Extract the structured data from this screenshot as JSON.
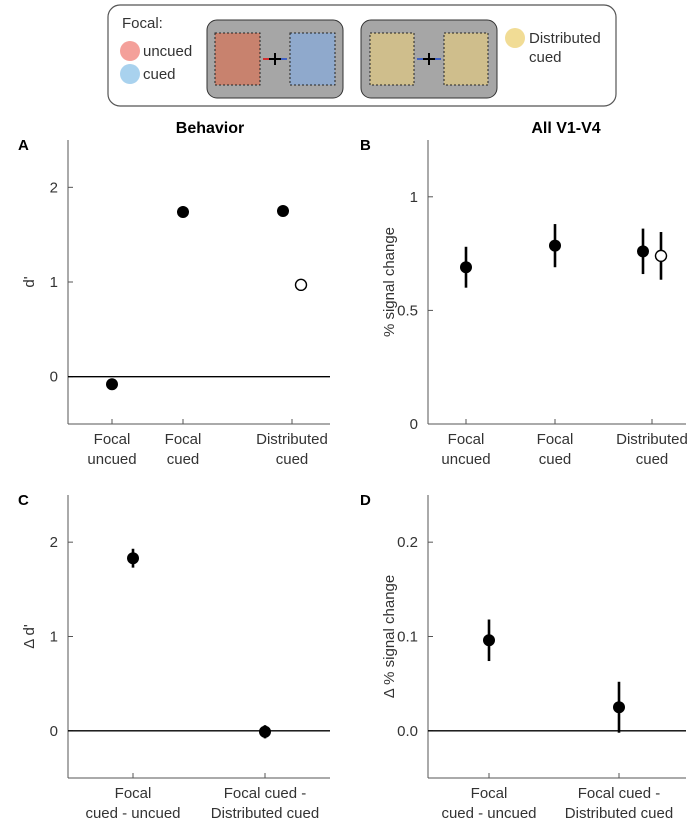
{
  "legend": {
    "heading": "Focal:",
    "items": [
      {
        "label": "uncued",
        "color": "#f4a09a"
      },
      {
        "label": "cued",
        "color": "#a9d2ee"
      },
      {
        "label_lines": [
          "Distributed",
          "cued"
        ],
        "color": "#f1dc95"
      }
    ],
    "stim_colors": {
      "uncued": "#c8826e",
      "cued": "#8fa9cc",
      "distributed": "#cfbe8c",
      "panel_bg": "#a6a6a6"
    }
  },
  "chart_data": [
    {
      "panel": "A",
      "title": "Behavior",
      "type": "scatter",
      "ylabel": "d'",
      "ylim": [
        -0.5,
        2.5
      ],
      "yticks": [
        0,
        1,
        2
      ],
      "categories": [
        [
          "Focal",
          "uncued"
        ],
        [
          "Focal",
          "cued"
        ],
        [
          "Distributed",
          "cued"
        ]
      ],
      "hline": 0,
      "points": [
        {
          "x": 0,
          "y": -0.08,
          "err": 0.05,
          "fill": "filled"
        },
        {
          "x": 1,
          "y": 1.74,
          "err": 0.06,
          "fill": "filled"
        },
        {
          "x": 2,
          "y": 1.75,
          "err": 0.03,
          "fill": "filled",
          "offset": -1
        },
        {
          "x": 2,
          "y": 0.97,
          "err": 0.06,
          "fill": "open",
          "offset": 1
        }
      ]
    },
    {
      "panel": "B",
      "title": "All V1-V4",
      "type": "scatter",
      "ylabel": "% signal change",
      "ylim": [
        0,
        1.25
      ],
      "yticks": [
        0,
        0.5,
        1
      ],
      "categories": [
        [
          "Focal",
          "uncued"
        ],
        [
          "Focal",
          "cued"
        ],
        [
          "Distributed",
          "cued"
        ]
      ],
      "hline": null,
      "points": [
        {
          "x": 0,
          "y": 0.69,
          "err": 0.09,
          "fill": "filled"
        },
        {
          "x": 1,
          "y": 0.785,
          "err": 0.095,
          "fill": "filled"
        },
        {
          "x": 2,
          "y": 0.76,
          "err": 0.1,
          "fill": "filled",
          "offset": -1
        },
        {
          "x": 2,
          "y": 0.74,
          "err": 0.105,
          "fill": "open",
          "offset": 1
        }
      ]
    },
    {
      "panel": "C",
      "title": "",
      "type": "scatter",
      "ylabel": "Δ d'",
      "ylim": [
        -0.5,
        2.5
      ],
      "yticks": [
        0,
        1,
        2
      ],
      "categories": [
        [
          "Focal",
          "cued - uncued"
        ],
        [
          "Focal cued -",
          "Distributed cued"
        ]
      ],
      "hline": 0,
      "points": [
        {
          "x": 0,
          "y": 1.83,
          "err": 0.1,
          "fill": "filled"
        },
        {
          "x": 1,
          "y": -0.01,
          "err": 0.07,
          "fill": "filled"
        }
      ]
    },
    {
      "panel": "D",
      "title": "",
      "type": "scatter",
      "ylabel": "Δ % signal change",
      "ylim": [
        -0.05,
        0.25
      ],
      "yticks": [
        "0.0",
        "0.1",
        "0.2"
      ],
      "categories": [
        [
          "Focal",
          "cued - uncued"
        ],
        [
          "Focal cued -",
          "Distributed cued"
        ]
      ],
      "hline": 0,
      "points": [
        {
          "x": 0,
          "y": 0.096,
          "err": 0.022,
          "fill": "filled"
        },
        {
          "x": 1,
          "y": 0.025,
          "err": 0.027,
          "fill": "filled"
        }
      ]
    }
  ]
}
